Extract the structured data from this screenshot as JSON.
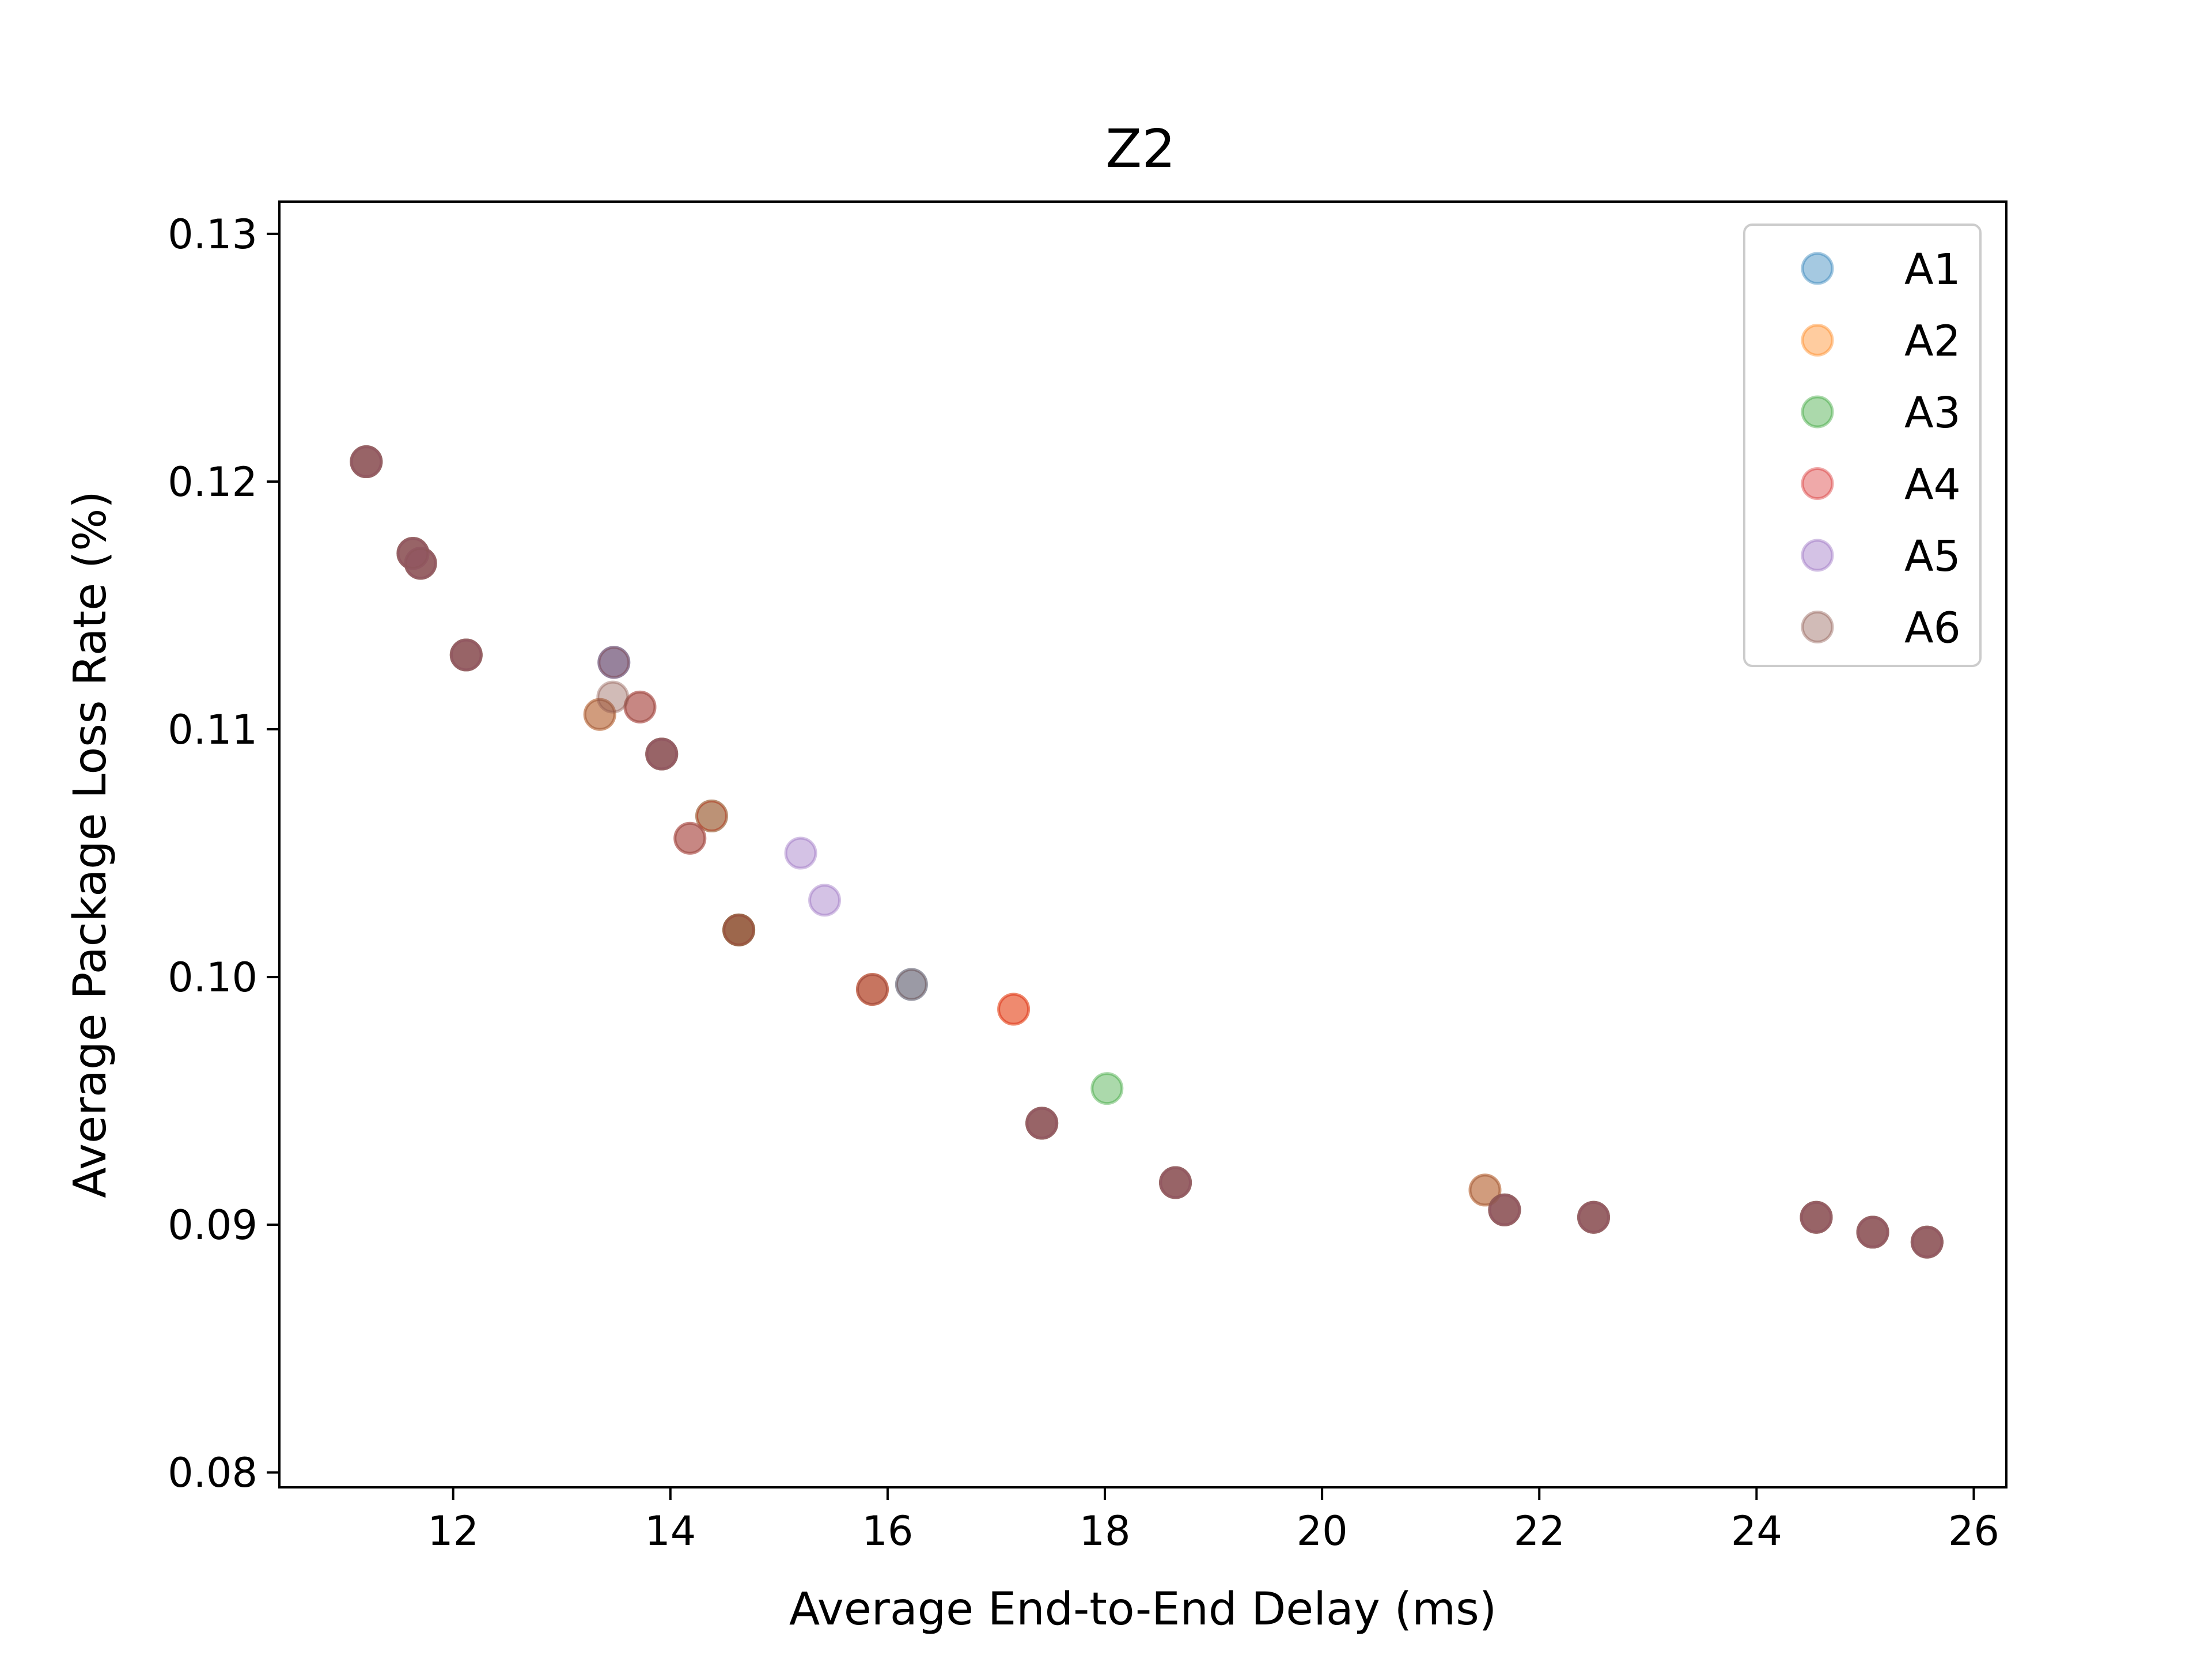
{
  "chart_data": {
    "type": "scatter",
    "title": "Z2",
    "xlabel": "Average End-to-End Delay (ms)",
    "ylabel": "Average Package Loss Rate (%)",
    "xlim": [
      10.4,
      26.3
    ],
    "ylim": [
      0.0794,
      0.1313
    ],
    "xticks": [
      {
        "value": 12,
        "label": "12"
      },
      {
        "value": 14,
        "label": "14"
      },
      {
        "value": 16,
        "label": "16"
      },
      {
        "value": 18,
        "label": "18"
      },
      {
        "value": 20,
        "label": "20"
      },
      {
        "value": 22,
        "label": "22"
      },
      {
        "value": 24,
        "label": "24"
      },
      {
        "value": 26,
        "label": "26"
      }
    ],
    "yticks": [
      {
        "value": 0.08,
        "label": "0.08"
      },
      {
        "value": 0.09,
        "label": "0.09"
      },
      {
        "value": 0.1,
        "label": "0.10"
      },
      {
        "value": 0.11,
        "label": "0.11"
      },
      {
        "value": 0.12,
        "label": "0.12"
      },
      {
        "value": 0.13,
        "label": "0.13"
      }
    ],
    "grid": false,
    "legend_position": "top-right",
    "point_alpha": 0.4,
    "series": [
      {
        "name": "A1",
        "color": "#1f77b4",
        "points": [
          [
            11.2,
            0.1208
          ],
          [
            11.63,
            0.1171
          ],
          [
            11.7,
            0.1167
          ],
          [
            12.12,
            0.113
          ],
          [
            13.48,
            0.1127
          ],
          [
            13.92,
            0.109
          ],
          [
            14.63,
            0.1019
          ],
          [
            16.22,
            0.0997
          ],
          [
            17.42,
            0.0941
          ],
          [
            18.65,
            0.0917
          ],
          [
            21.68,
            0.0906
          ],
          [
            22.5,
            0.0903
          ],
          [
            24.55,
            0.0903
          ],
          [
            25.07,
            0.0897
          ],
          [
            25.57,
            0.0893
          ]
        ]
      },
      {
        "name": "A2",
        "color": "#ff7f0e",
        "points": [
          [
            11.2,
            0.1208
          ],
          [
            11.63,
            0.1171
          ],
          [
            11.7,
            0.1167
          ],
          [
            12.12,
            0.113
          ],
          [
            13.35,
            0.1106
          ],
          [
            13.92,
            0.109
          ],
          [
            14.63,
            0.1019
          ],
          [
            15.86,
            0.0995
          ],
          [
            17.16,
            0.0987
          ],
          [
            17.42,
            0.0941
          ],
          [
            18.65,
            0.0917
          ],
          [
            21.5,
            0.0914
          ],
          [
            21.68,
            0.0906
          ],
          [
            22.5,
            0.0903
          ],
          [
            24.55,
            0.0903
          ],
          [
            25.07,
            0.0897
          ],
          [
            25.57,
            0.0893
          ]
        ]
      },
      {
        "name": "A3",
        "color": "#2ca02c",
        "points": [
          [
            11.2,
            0.1208
          ],
          [
            11.63,
            0.1171
          ],
          [
            11.7,
            0.1167
          ],
          [
            12.12,
            0.113
          ],
          [
            13.92,
            0.109
          ],
          [
            14.38,
            0.1065
          ],
          [
            14.63,
            0.1019
          ],
          [
            18.02,
            0.0955
          ],
          [
            17.42,
            0.0941
          ],
          [
            18.65,
            0.0917
          ],
          [
            21.68,
            0.0906
          ],
          [
            22.5,
            0.0903
          ],
          [
            24.55,
            0.0903
          ],
          [
            25.07,
            0.0897
          ],
          [
            25.57,
            0.0893
          ]
        ]
      },
      {
        "name": "A4",
        "color": "#d62728",
        "points": [
          [
            11.2,
            0.1208
          ],
          [
            11.63,
            0.1171
          ],
          [
            11.7,
            0.1167
          ],
          [
            12.12,
            0.113
          ],
          [
            13.72,
            0.1109
          ],
          [
            13.92,
            0.109
          ],
          [
            14.18,
            0.1056
          ],
          [
            14.38,
            0.1065
          ],
          [
            14.63,
            0.1019
          ],
          [
            15.86,
            0.0995
          ],
          [
            17.16,
            0.0987
          ],
          [
            17.42,
            0.0941
          ],
          [
            18.65,
            0.0917
          ],
          [
            21.68,
            0.0906
          ],
          [
            22.5,
            0.0903
          ],
          [
            24.55,
            0.0903
          ],
          [
            25.07,
            0.0897
          ],
          [
            25.57,
            0.0893
          ]
        ]
      },
      {
        "name": "A5",
        "color": "#9467bd",
        "points": [
          [
            11.2,
            0.1208
          ],
          [
            11.63,
            0.1171
          ],
          [
            11.7,
            0.1167
          ],
          [
            12.12,
            0.113
          ],
          [
            13.48,
            0.1127
          ],
          [
            13.92,
            0.109
          ],
          [
            15.2,
            0.105
          ],
          [
            15.42,
            0.1031
          ],
          [
            17.42,
            0.0941
          ],
          [
            18.65,
            0.0917
          ],
          [
            21.68,
            0.0906
          ],
          [
            22.5,
            0.0903
          ],
          [
            24.55,
            0.0903
          ],
          [
            25.07,
            0.0897
          ],
          [
            25.57,
            0.0893
          ]
        ]
      },
      {
        "name": "A6",
        "color": "#8c564b",
        "points": [
          [
            11.2,
            0.1208
          ],
          [
            11.63,
            0.1171
          ],
          [
            11.7,
            0.1167
          ],
          [
            12.12,
            0.113
          ],
          [
            13.48,
            0.1127
          ],
          [
            13.47,
            0.1113
          ],
          [
            13.35,
            0.1106
          ],
          [
            13.72,
            0.1109
          ],
          [
            13.92,
            0.109
          ],
          [
            14.18,
            0.1056
          ],
          [
            14.63,
            0.1019
          ],
          [
            15.86,
            0.0995
          ],
          [
            16.22,
            0.0997
          ],
          [
            17.42,
            0.0941
          ],
          [
            18.65,
            0.0917
          ],
          [
            21.5,
            0.0914
          ],
          [
            21.68,
            0.0906
          ],
          [
            22.5,
            0.0903
          ],
          [
            24.55,
            0.0903
          ],
          [
            25.07,
            0.0897
          ],
          [
            25.57,
            0.0893
          ]
        ]
      }
    ]
  }
}
